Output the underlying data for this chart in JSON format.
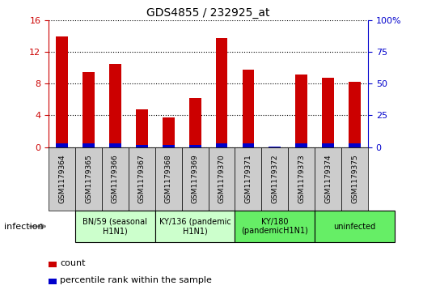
{
  "title": "GDS4855 / 232925_at",
  "samples": [
    "GSM1179364",
    "GSM1179365",
    "GSM1179366",
    "GSM1179367",
    "GSM1179368",
    "GSM1179369",
    "GSM1179370",
    "GSM1179371",
    "GSM1179372",
    "GSM1179373",
    "GSM1179374",
    "GSM1179375"
  ],
  "count_values": [
    14.0,
    9.5,
    10.5,
    4.8,
    3.7,
    6.2,
    13.8,
    9.8,
    0.05,
    9.2,
    8.8,
    8.3
  ],
  "percentile_values": [
    2.8,
    2.7,
    2.7,
    1.5,
    1.4,
    1.7,
    2.8,
    2.7,
    0.4,
    2.7,
    2.7,
    2.6
  ],
  "ylim_left": [
    0,
    16
  ],
  "ylim_right": [
    0,
    100
  ],
  "yticks_left": [
    0,
    4,
    8,
    12,
    16
  ],
  "yticks_right": [
    0,
    25,
    50,
    75,
    100
  ],
  "groups": [
    {
      "label": "BN/59 (seasonal\nH1N1)",
      "start": 2,
      "end": 4,
      "color": "#ccffcc"
    },
    {
      "label": "KY/136 (pandemic\nH1N1)",
      "start": 5,
      "end": 7,
      "color": "#ccffcc"
    },
    {
      "label": "KY/180\n(pandemicH1N1)",
      "start": 8,
      "end": 10,
      "color": "#66ee66"
    },
    {
      "label": "uninfected",
      "start": 11,
      "end": 13,
      "color": "#66ee66"
    }
  ],
  "bar_color_red": "#cc0000",
  "bar_color_blue": "#0000cc",
  "bar_width": 0.45,
  "bg_color": "#ffffff",
  "left_axis_color": "#cc0000",
  "right_axis_color": "#0000cc",
  "infection_label": "infection",
  "legend_count": "count",
  "legend_percentile": "percentile rank within the sample",
  "sample_box_color": "#cccccc",
  "n_samples": 12
}
